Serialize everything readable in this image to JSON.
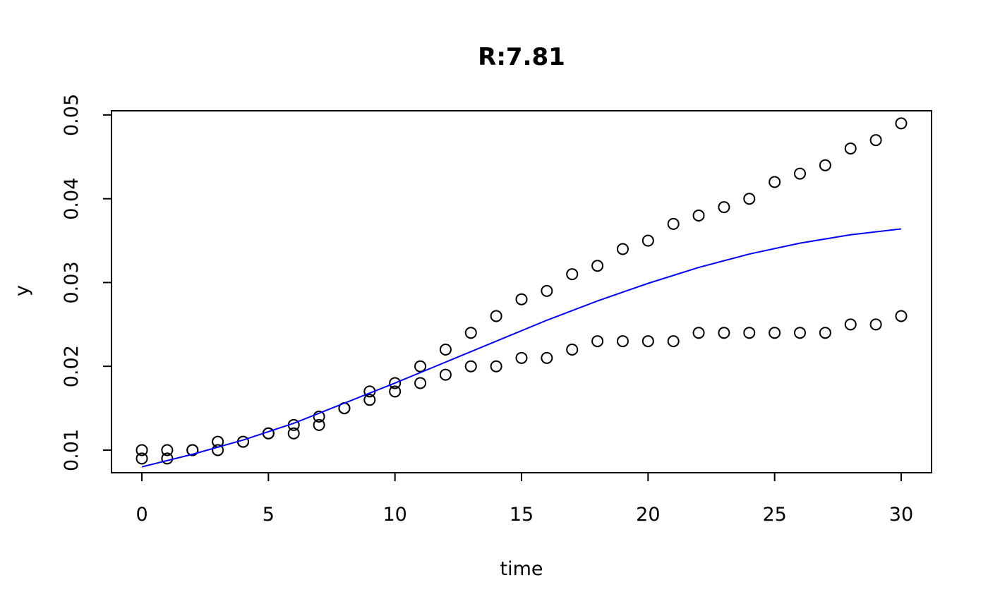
{
  "chart_data": {
    "type": "scatter",
    "title": "R:7.81",
    "xlabel": "time",
    "ylabel": "y",
    "xlim": [
      -1.2,
      31.2
    ],
    "ylim": [
      0.0073,
      0.0505
    ],
    "x_ticks": [
      0,
      5,
      10,
      15,
      20,
      25,
      30
    ],
    "y_ticks": [
      0.01,
      0.02,
      0.03,
      0.04,
      0.05
    ],
    "x_tick_labels": [
      "0",
      "5",
      "10",
      "15",
      "20",
      "25",
      "30"
    ],
    "y_tick_labels": [
      "0.01",
      "0.02",
      "0.03",
      "0.04",
      "0.05"
    ],
    "grid": false,
    "series": [
      {
        "kind": "points",
        "color": "#000000",
        "x": [
          0,
          1,
          2,
          3,
          4,
          5,
          6,
          7,
          8,
          9,
          10,
          11,
          12,
          13,
          14,
          15,
          16,
          17,
          18,
          19,
          20,
          21,
          22,
          23,
          24,
          25,
          26,
          27,
          28,
          29,
          30
        ],
        "y": [
          0.01,
          0.01,
          0.01,
          0.011,
          0.011,
          0.012,
          0.013,
          0.014,
          0.015,
          0.017,
          0.018,
          0.02,
          0.022,
          0.024,
          0.026,
          0.028,
          0.029,
          0.031,
          0.032,
          0.034,
          0.035,
          0.037,
          0.038,
          0.039,
          0.04,
          0.042,
          0.043,
          0.044,
          0.046,
          0.047,
          0.049
        ]
      },
      {
        "kind": "points",
        "color": "#000000",
        "x": [
          0,
          1,
          2,
          3,
          4,
          5,
          6,
          7,
          8,
          9,
          10,
          11,
          12,
          13,
          14,
          15,
          16,
          17,
          18,
          19,
          20,
          21,
          22,
          23,
          24,
          25,
          26,
          27,
          28,
          29,
          30
        ],
        "y": [
          0.009,
          0.009,
          0.01,
          0.01,
          0.011,
          0.012,
          0.012,
          0.013,
          0.015,
          0.016,
          0.017,
          0.018,
          0.019,
          0.02,
          0.02,
          0.021,
          0.021,
          0.022,
          0.023,
          0.023,
          0.023,
          0.023,
          0.024,
          0.024,
          0.024,
          0.024,
          0.024,
          0.024,
          0.025,
          0.025,
          0.026
        ]
      },
      {
        "kind": "line",
        "color": "#0000ff",
        "x": [
          0,
          2,
          4,
          6,
          8,
          10,
          12,
          14,
          16,
          18,
          20,
          22,
          24,
          26,
          28,
          30
        ],
        "y": [
          0.008,
          0.0095,
          0.0112,
          0.0132,
          0.0156,
          0.018,
          0.0205,
          0.023,
          0.0255,
          0.0278,
          0.0299,
          0.0318,
          0.0334,
          0.0347,
          0.0357,
          0.0364
        ]
      }
    ]
  }
}
